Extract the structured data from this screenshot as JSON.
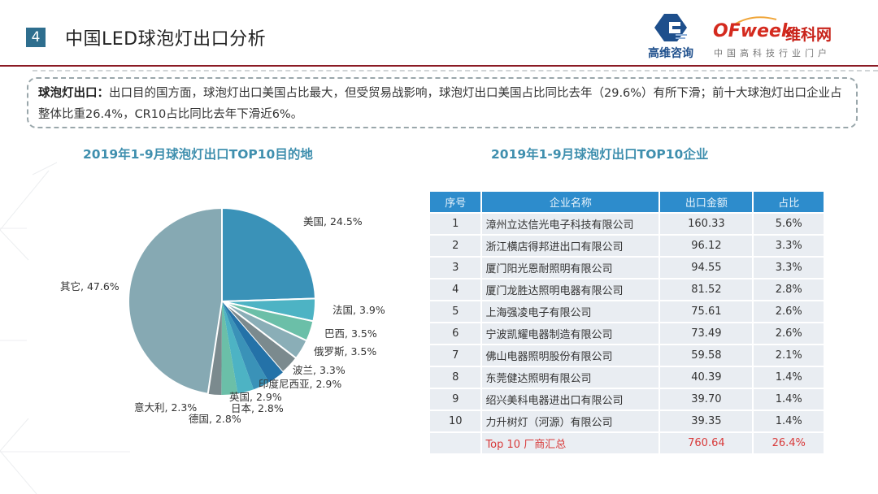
{
  "header": {
    "section_number": "4",
    "title": "中国LED球泡灯出口分析",
    "logo_left_text": "高维咨询",
    "logo_right_brand": "OFweek",
    "logo_right_cn": "维科网",
    "logo_right_sub": "中国高科技行业门户"
  },
  "summary": {
    "label": "球泡灯出口：",
    "text": "出口目的国方面，球泡灯出口美国占比最大，但受贸易战影响，球泡灯出口美国占比同比去年（29.6%）有所下滑；前十大球泡灯出口企业占整体比重26.4%，CR10占比同比去年下滑近6%。"
  },
  "colors": {
    "accent_title": "#3f8fae",
    "header_rule": "#8b1a24",
    "table_header": "#2d8ccc",
    "table_cell": "#e9edf2",
    "total_text": "#d83a3a"
  },
  "chart_data": [
    {
      "type": "pie",
      "title": "2019年1-9月球泡灯出口TOP10目的地",
      "start": "top",
      "direction": "clockwise",
      "slices": [
        {
          "label": "美国",
          "value": 24.5,
          "display": "美国, 24.5%",
          "color": "#3a92b8"
        },
        {
          "label": "法国",
          "value": 3.9,
          "display": "法国, 3.9%",
          "color": "#4db3c4"
        },
        {
          "label": "巴西",
          "value": 3.5,
          "display": "巴西, 3.5%",
          "color": "#6bbfa8"
        },
        {
          "label": "俄罗斯",
          "value": 3.5,
          "display": "俄罗斯, 3.5%",
          "color": "#8aaeb7"
        },
        {
          "label": "波兰",
          "value": 3.3,
          "display": "波兰, 3.3%",
          "color": "#7b8a8e"
        },
        {
          "label": "印度尼西亚",
          "value": 2.9,
          "display": "印度尼西亚, 2.9%",
          "color": "#2472a8"
        },
        {
          "label": "英国",
          "value": 2.9,
          "display": "英国, 2.9%",
          "color": "#3a92b8"
        },
        {
          "label": "日本",
          "value": 2.8,
          "display": "日本, 2.8%",
          "color": "#4db3c4"
        },
        {
          "label": "德国",
          "value": 2.8,
          "display": "德国, 2.8%",
          "color": "#6bbfa8"
        },
        {
          "label": "意大利",
          "value": 2.3,
          "display": "意大利, 2.3%",
          "color": "#7b8a8e"
        },
        {
          "label": "其它",
          "value": 47.6,
          "display": "其它, 47.6%",
          "color": "#86a9b3"
        }
      ]
    },
    {
      "type": "table",
      "title": "2019年1-9月球泡灯出口TOP10企业",
      "columns": [
        "序号",
        "企业名称",
        "出口金额",
        "占比"
      ],
      "rows": [
        [
          "1",
          "漳州立达信光电子科技有限公司",
          "160.33",
          "5.6%"
        ],
        [
          "2",
          "浙江横店得邦进出口有限公司",
          "96.12",
          "3.3%"
        ],
        [
          "3",
          "厦门阳光恩耐照明有限公司",
          "94.55",
          "3.3%"
        ],
        [
          "4",
          "厦门龙胜达照明电器有限公司",
          "81.52",
          "2.8%"
        ],
        [
          "5",
          "上海强凌电子有限公司",
          "75.61",
          "2.6%"
        ],
        [
          "6",
          "宁波凯耀电器制造有限公司",
          "73.49",
          "2.6%"
        ],
        [
          "7",
          "佛山电器照明股份有限公司",
          "59.58",
          "2.1%"
        ],
        [
          "8",
          "东莞健达照明有限公司",
          "40.39",
          "1.4%"
        ],
        [
          "9",
          "绍兴美科电器进出口有限公司",
          "39.70",
          "1.4%"
        ],
        [
          "10",
          "力升树灯（河源）有限公司",
          "39.35",
          "1.4%"
        ]
      ],
      "total": [
        "",
        "Top 10 厂商汇总",
        "760.64",
        "26.4%"
      ]
    }
  ]
}
